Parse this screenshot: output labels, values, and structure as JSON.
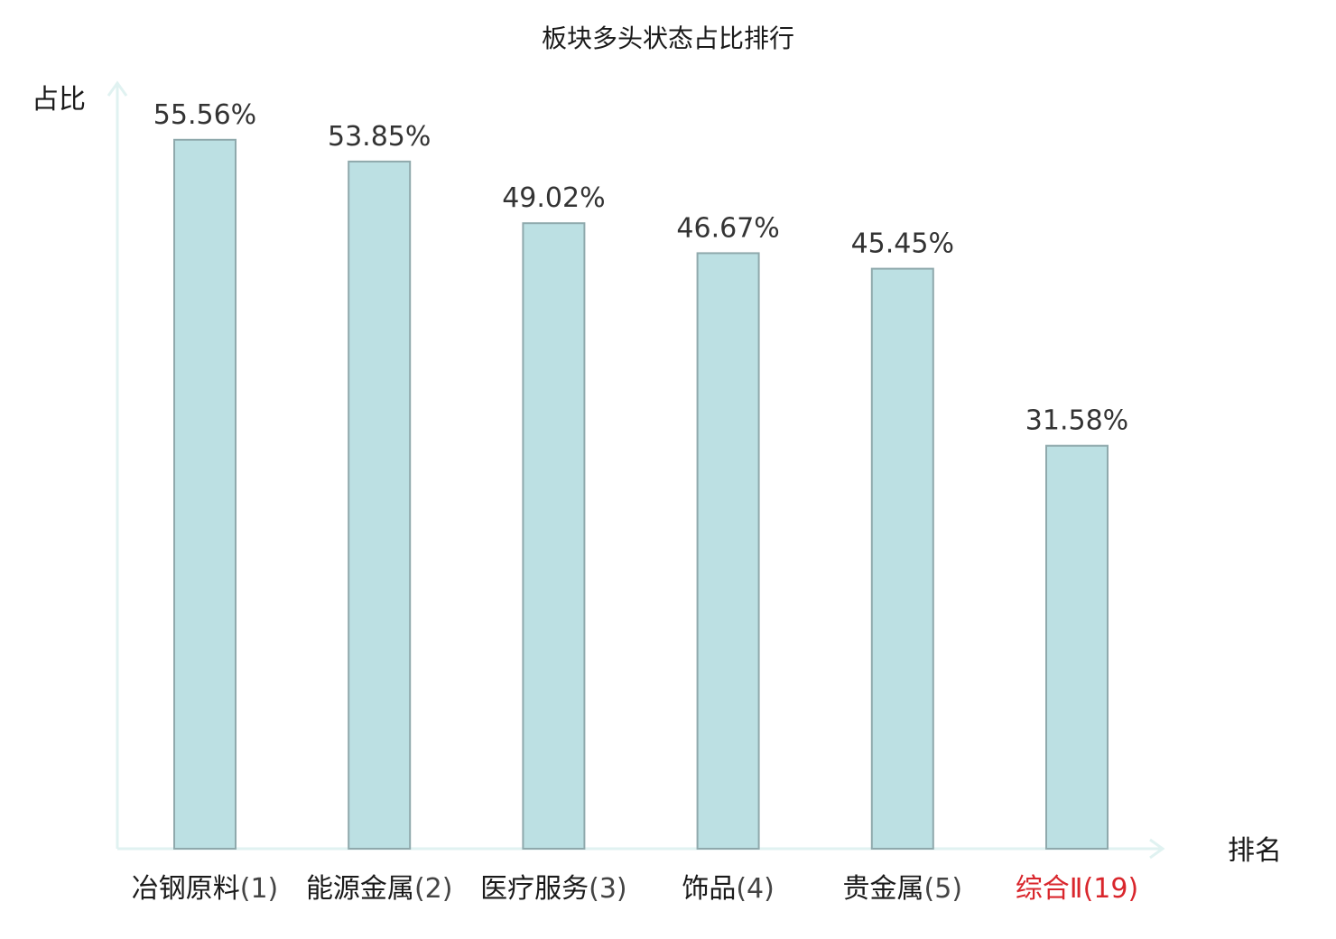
{
  "chart_data": {
    "type": "bar",
    "title": "板块多头状态占比排行",
    "ylabel": "占比",
    "xlabel": "排名",
    "ylim": [
      0,
      60
    ],
    "categories": [
      {
        "name": "冶钢原料",
        "rank": "(1)"
      },
      {
        "name": "能源金属",
        "rank": "(2)"
      },
      {
        "name": "医疗服务",
        "rank": "(3)"
      },
      {
        "name": "饰品",
        "rank": "(4)"
      },
      {
        "name": "贵金属",
        "rank": "(5)"
      },
      {
        "name": "综合Ⅱ",
        "rank": "(19)"
      }
    ],
    "values": [
      55.56,
      53.85,
      49.02,
      46.67,
      45.45,
      31.58
    ],
    "value_labels": [
      "55.56%",
      "53.85%",
      "49.02%",
      "46.67%",
      "45.45%",
      "31.58%"
    ],
    "highlight_index": 5,
    "grid": false,
    "legend": "none"
  },
  "colors": {
    "bar_fill": "#bce0e3",
    "bar_stroke": "#8fa9ac",
    "axis": "#e0f2f1",
    "label_text": "#1a1a1a",
    "rank_text": "#444444",
    "highlight": "#d9262c"
  }
}
